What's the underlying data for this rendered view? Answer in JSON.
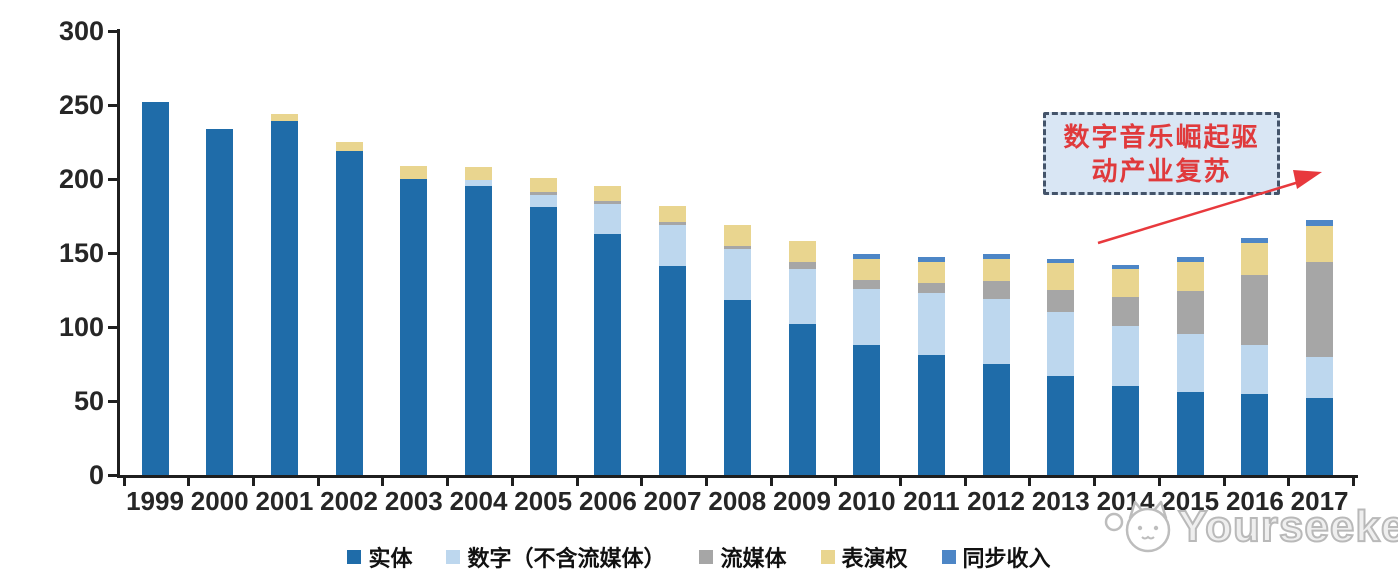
{
  "chart_data": {
    "type": "bar",
    "stacked": true,
    "title": "",
    "xlabel": "",
    "ylabel": "",
    "categories": [
      "1999",
      "2000",
      "2001",
      "2002",
      "2003",
      "2004",
      "2005",
      "2006",
      "2007",
      "2008",
      "2009",
      "2010",
      "2011",
      "2012",
      "2013",
      "2014",
      "2015",
      "2016",
      "2017"
    ],
    "series": [
      {
        "id": "physical",
        "name": "实体",
        "color": "#1f6ca9",
        "values": [
          252,
          234,
          239,
          219,
          200,
          195,
          181,
          163,
          141,
          118,
          102,
          88,
          81,
          75,
          67,
          60,
          56,
          55,
          52
        ]
      },
      {
        "id": "digital",
        "name": "数字（不含流媒体）",
        "color": "#bdd7ee",
        "values": [
          0,
          0,
          0,
          0,
          0,
          4,
          8,
          20,
          28,
          35,
          37,
          38,
          42,
          44,
          43,
          41,
          39,
          33,
          28
        ]
      },
      {
        "id": "streaming",
        "name": "流媒体",
        "color": "#a6a6a6",
        "values": [
          0,
          0,
          0,
          0,
          0,
          0,
          2,
          2,
          2,
          2,
          5,
          6,
          7,
          12,
          15,
          19,
          29,
          47,
          64
        ]
      },
      {
        "id": "performance",
        "name": "表演权",
        "color": "#e9d58f",
        "values": [
          0,
          0,
          5,
          6,
          9,
          9,
          10,
          10,
          11,
          14,
          14,
          14,
          14,
          15,
          18,
          19,
          20,
          22,
          24
        ]
      },
      {
        "id": "sync",
        "name": "同步收入",
        "color": "#4d86c6",
        "values": [
          0,
          0,
          0,
          0,
          0,
          0,
          0,
          0,
          0,
          0,
          0,
          3,
          3,
          3,
          3,
          3,
          3,
          3,
          4
        ]
      }
    ],
    "ylim": [
      0,
      300
    ],
    "yticks": [
      0,
      50,
      100,
      150,
      200,
      250,
      300
    ],
    "grid": false,
    "legend_position": "bottom"
  },
  "annotation": {
    "line1": "数字音乐崛起驱",
    "line2": "动产业复苏",
    "text_color": "#e03a3c",
    "box_fill": "#d9e6f4",
    "box_border": "#44546a",
    "arrow_color": "#e8393d"
  },
  "watermark": {
    "text": "Yourseeker"
  }
}
